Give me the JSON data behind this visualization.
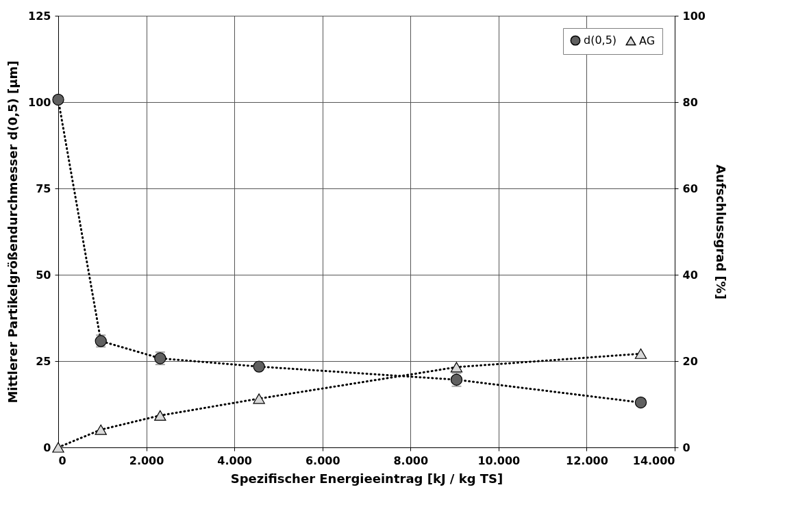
{
  "chart_data": {
    "type": "line",
    "xlabel": "Spezifischer Energieeintrag [kJ / kg TS]",
    "ylabel": "Mittlerer Partikelgrößendurchmesser d(0,5) [µm]",
    "y2label": "Aufschlussgrad [%]",
    "x": [
      0,
      968,
      2315,
      4560,
      9045,
      13230
    ],
    "xlim": [
      0,
      14000
    ],
    "xticks": [
      0,
      {
        "value": 2000,
        "label": "2.000"
      },
      {
        "value": 4000,
        "label": "4.000"
      },
      {
        "value": 6000,
        "label": "6.000"
      },
      {
        "value": 8000,
        "label": "8.000"
      },
      {
        "value": 10000,
        "label": "10.000"
      },
      {
        "value": 12000,
        "label": "12.000"
      },
      {
        "value": 14000,
        "label": "14.000"
      }
    ],
    "ylim": [
      0,
      125
    ],
    "yticks": [
      0,
      25,
      50,
      75,
      100,
      125
    ],
    "y2lim": [
      0,
      100
    ],
    "y2ticks": [
      0,
      20,
      40,
      60,
      80,
      100
    ],
    "series": [
      {
        "name": "d(0,5)",
        "color": "#606060",
        "marker": "circle",
        "values": [
          100.7,
          30.8,
          25.8,
          23.4,
          19.6,
          13.0
        ],
        "errors": [
          null,
          1.7,
          1.8,
          null,
          1.9,
          null
        ]
      },
      {
        "name": "AG",
        "color": "#d9d9d9",
        "marker": "triangle",
        "axis": "y2",
        "values": [
          0,
          4.1,
          7.4,
          11.3,
          18.6,
          21.7
        ]
      }
    ],
    "line_style": "dotted",
    "grid": true,
    "legend": "top right"
  }
}
